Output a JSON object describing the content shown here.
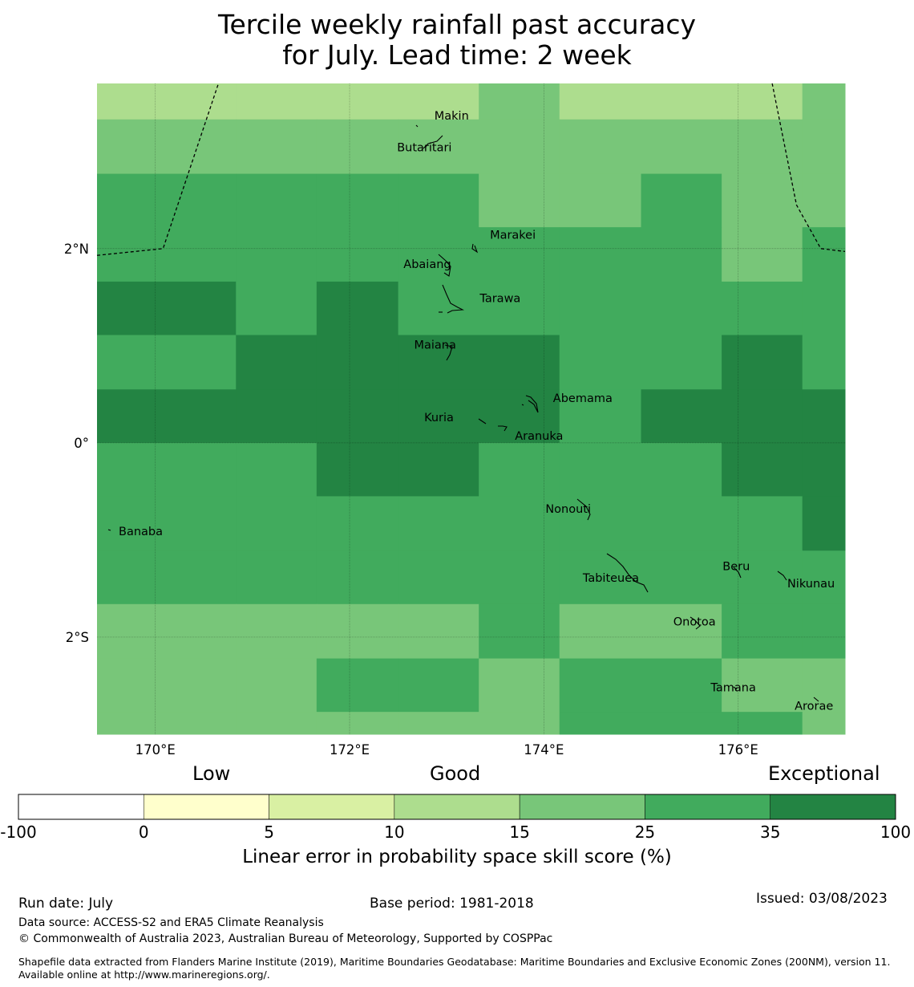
{
  "title_line1": "Tercile weekly rainfall past accuracy",
  "title_line2": "for July. Lead time: 2 week",
  "map": {
    "lon_range": [
      169.4,
      177.1
    ],
    "lat_range": [
      -3.0,
      3.7
    ],
    "lon_ticks": [
      {
        "value": 170,
        "label": "170°E"
      },
      {
        "value": 172,
        "label": "172°E"
      },
      {
        "value": 174,
        "label": "174°E"
      },
      {
        "value": 176,
        "label": "176°E"
      }
    ],
    "lat_ticks": [
      {
        "value": 2,
        "label": "2°N"
      },
      {
        "value": 0,
        "label": "0°"
      },
      {
        "value": -2,
        "label": "2°S"
      }
    ],
    "grid_lon_edges": [
      169.4,
      170.83,
      171.66,
      172.5,
      173.33,
      174.16,
      175.0,
      175.83,
      176.66,
      177.1
    ],
    "grid_lat_edges": [
      3.7,
      3.33,
      2.77,
      2.22,
      1.66,
      1.11,
      0.55,
      0.0,
      -0.55,
      -1.11,
      -1.66,
      -2.22,
      -2.77,
      -3.0
    ],
    "grid_values": [
      [
        12,
        12,
        12,
        12,
        20,
        12,
        12,
        12,
        20
      ],
      [
        20,
        20,
        20,
        20,
        20,
        20,
        20,
        20,
        20
      ],
      [
        30,
        30,
        30,
        30,
        20,
        20,
        30,
        20,
        20
      ],
      [
        30,
        30,
        30,
        30,
        30,
        30,
        30,
        20,
        30
      ],
      [
        50,
        30,
        50,
        30,
        30,
        30,
        30,
        30,
        30
      ],
      [
        30,
        50,
        50,
        50,
        50,
        30,
        30,
        50,
        30
      ],
      [
        50,
        50,
        50,
        50,
        50,
        30,
        50,
        50,
        50
      ],
      [
        30,
        30,
        50,
        50,
        30,
        30,
        30,
        50,
        50
      ],
      [
        30,
        30,
        30,
        30,
        30,
        30,
        30,
        30,
        50
      ],
      [
        30,
        30,
        30,
        30,
        30,
        30,
        30,
        30,
        30
      ],
      [
        20,
        20,
        20,
        20,
        30,
        20,
        20,
        30,
        30
      ],
      [
        20,
        20,
        30,
        30,
        20,
        30,
        30,
        20,
        20
      ],
      [
        20,
        20,
        20,
        20,
        20,
        30,
        30,
        30,
        20
      ]
    ],
    "islands": [
      {
        "name": "Makin",
        "lon": 173.05,
        "lat": 3.33
      },
      {
        "name": "Butaritari",
        "lon": 172.77,
        "lat": 3.0
      },
      {
        "name": "Marakei",
        "lon": 173.68,
        "lat": 2.1
      },
      {
        "name": "Abaiang",
        "lon": 172.8,
        "lat": 1.8
      },
      {
        "name": "Tarawa",
        "lon": 173.55,
        "lat": 1.45
      },
      {
        "name": "Maiana",
        "lon": 172.88,
        "lat": 0.97
      },
      {
        "name": "Abemama",
        "lon": 174.4,
        "lat": 0.42
      },
      {
        "name": "Kuria",
        "lon": 172.92,
        "lat": 0.22
      },
      {
        "name": "Aranuka",
        "lon": 173.95,
        "lat": 0.03
      },
      {
        "name": "Nonouti",
        "lon": 174.25,
        "lat": -0.72
      },
      {
        "name": "Banaba",
        "lon": 169.85,
        "lat": -0.95
      },
      {
        "name": "Beru",
        "lon": 175.98,
        "lat": -1.31
      },
      {
        "name": "Tabiteuea",
        "lon": 174.69,
        "lat": -1.43
      },
      {
        "name": "Nikunau",
        "lon": 176.75,
        "lat": -1.49
      },
      {
        "name": "Onotoa",
        "lon": 175.55,
        "lat": -1.88
      },
      {
        "name": "Tamana",
        "lon": 175.95,
        "lat": -2.56
      },
      {
        "name": "Arorae",
        "lon": 176.78,
        "lat": -2.75
      }
    ]
  },
  "colorbar": {
    "tiers": {
      "low": "Low",
      "good": "Good",
      "exceptional": "Exceptional"
    },
    "boundaries": [
      "-100",
      "0",
      "5",
      "10",
      "15",
      "25",
      "35",
      "100"
    ],
    "colors": [
      "#ffffff",
      "#ffffcc",
      "#d9f0a3",
      "#addd8e",
      "#78c679",
      "#41ab5d",
      "#238443"
    ],
    "label": "Linear error in probability space skill score (%)"
  },
  "footer": {
    "run_date": "Run date: July",
    "base_period": "Base period: 1981-2018",
    "issued": "Issued: 03/08/2023",
    "data_source": "Data source: ACCESS-S2 and ERA5 Climate Reanalysis",
    "copyright": "© Commonwealth of Australia 2023, Australian Bureau of Meteorology, Supported by COSPPac",
    "shapefile": "Shapefile data extracted from Flanders Marine Institute (2019), Maritime Boundaries Geodatabase: Maritime Boundaries and Exclusive Economic Zones (200NM), version 11. Available online at http://www.marineregions.org/."
  }
}
